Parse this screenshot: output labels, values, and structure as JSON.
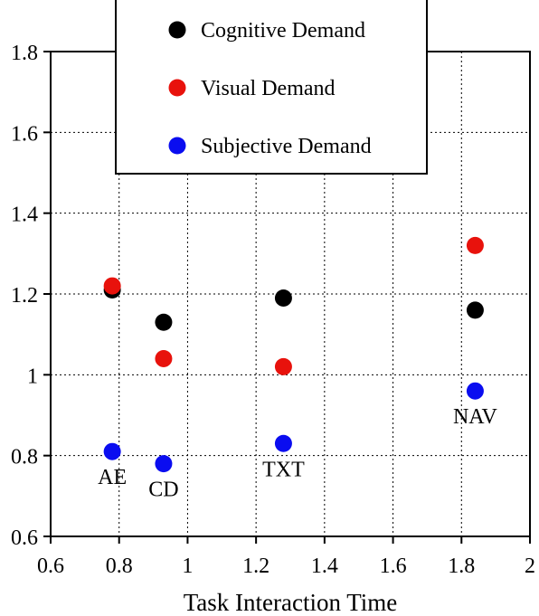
{
  "chart_data": {
    "type": "scatter",
    "xlabel": "Task Interaction Time",
    "ylabel": "",
    "xlim": [
      0.6,
      2.0
    ],
    "ylim": [
      0.6,
      1.8
    ],
    "x_ticks": [
      0.6,
      0.8,
      1.0,
      1.2,
      1.4,
      1.6,
      1.8,
      2.0
    ],
    "x_tick_labels": [
      "0.6",
      "0.8",
      "1",
      "1.2",
      "1.4",
      "1.6",
      "1.8",
      "2"
    ],
    "y_ticks": [
      0.6,
      0.8,
      1.0,
      1.2,
      1.4,
      1.6,
      1.8
    ],
    "y_tick_labels": [
      "0.6",
      "0.8",
      "1",
      "1.2",
      "1.4",
      "1.6",
      "1.8"
    ],
    "grid": true,
    "legend_position": "top-center",
    "series": [
      {
        "name": "Cognitive Demand",
        "color": "#000000",
        "points": [
          {
            "x": 0.78,
            "y": 1.21
          },
          {
            "x": 0.93,
            "y": 1.13
          },
          {
            "x": 1.28,
            "y": 1.19
          },
          {
            "x": 1.84,
            "y": 1.16
          }
        ]
      },
      {
        "name": "Visual Demand",
        "color": "#e8120c",
        "points": [
          {
            "x": 0.78,
            "y": 1.22
          },
          {
            "x": 0.93,
            "y": 1.04
          },
          {
            "x": 1.28,
            "y": 1.02
          },
          {
            "x": 1.84,
            "y": 1.32
          }
        ]
      },
      {
        "name": "Subjective Demand",
        "color": "#0a0df0",
        "points": [
          {
            "x": 0.78,
            "y": 0.81
          },
          {
            "x": 0.93,
            "y": 0.78
          },
          {
            "x": 1.28,
            "y": 0.83
          },
          {
            "x": 1.84,
            "y": 0.96
          }
        ]
      }
    ],
    "annotations": [
      {
        "text": "AE",
        "x": 0.78,
        "y": 0.81
      },
      {
        "text": "CD",
        "x": 0.93,
        "y": 0.78
      },
      {
        "text": "TXT",
        "x": 1.28,
        "y": 0.83
      },
      {
        "text": "NAV",
        "x": 1.84,
        "y": 0.96
      }
    ]
  }
}
